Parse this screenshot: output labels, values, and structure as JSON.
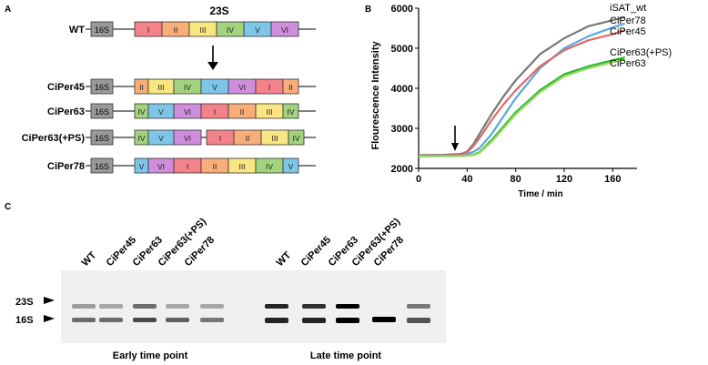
{
  "panel_letters": {
    "a": "A",
    "b": "B",
    "c": "C"
  },
  "panel_a": {
    "title": "23S",
    "label_16s": "16S",
    "colors": {
      "I": "#f4828a",
      "II": "#f9ae7a",
      "III": "#f9e680",
      "IV": "#a3d37e",
      "V": "#7ec6e8",
      "VI": "#cf8edb",
      "box_16s": "#999999"
    },
    "constructs": [
      {
        "name": "WT",
        "segments": [
          "I",
          "II",
          "III",
          "IV",
          "V",
          "VI"
        ]
      },
      {
        "name": "CiPer45",
        "segments": [
          "II",
          "III",
          "IV",
          "V",
          "VI",
          "I",
          "II"
        ]
      },
      {
        "name": "CiPer63",
        "segments": [
          "IV",
          "V",
          "VI",
          "I",
          "II",
          "III",
          "IV"
        ]
      },
      {
        "name": "CiPer63(+PS)",
        "segments": [
          "IV",
          "V",
          "VI",
          "I",
          "II",
          "III",
          "IV"
        ]
      },
      {
        "name": "CiPer78",
        "segments": [
          "V",
          "VI",
          "I",
          "II",
          "III",
          "IV",
          "V"
        ]
      }
    ]
  },
  "chart_data": {
    "type": "line",
    "title": "",
    "xlabel": "Time / min",
    "ylabel": "Flourescence Intensity",
    "xlim": [
      0,
      180
    ],
    "ylim": [
      2000,
      6000
    ],
    "xticks": [
      0,
      40,
      80,
      120,
      160
    ],
    "yticks": [
      2000,
      3000,
      4000,
      5000,
      6000
    ],
    "grid": false,
    "legend": "right, labels at line ends",
    "annotation": "arrow at ~30 min",
    "arrow_x": 30,
    "series": [
      {
        "name": "iSAT_wt",
        "color": "#777777",
        "x": [
          0,
          20,
          35,
          40,
          45,
          50,
          60,
          70,
          80,
          100,
          120,
          140,
          160,
          170
        ],
        "y": [
          2330,
          2340,
          2360,
          2420,
          2600,
          2850,
          3350,
          3800,
          4200,
          4850,
          5250,
          5550,
          5700,
          5780
        ]
      },
      {
        "name": "CiPer78",
        "color": "#5ba8dc",
        "x": [
          0,
          20,
          35,
          40,
          45,
          50,
          60,
          70,
          80,
          100,
          120,
          140,
          160,
          170
        ],
        "y": [
          2310,
          2320,
          2330,
          2360,
          2410,
          2500,
          2850,
          3300,
          3750,
          4500,
          5000,
          5300,
          5520,
          5620
        ]
      },
      {
        "name": "CiPer45",
        "color": "#dd6b67",
        "x": [
          0,
          20,
          35,
          40,
          45,
          50,
          60,
          70,
          80,
          100,
          120,
          140,
          160,
          170
        ],
        "y": [
          2310,
          2320,
          2340,
          2400,
          2550,
          2750,
          3200,
          3600,
          3950,
          4550,
          4950,
          5200,
          5350,
          5450
        ]
      },
      {
        "name": "CiPer63(+PS)",
        "color": "#2eb82e",
        "x": [
          0,
          20,
          35,
          40,
          45,
          50,
          60,
          70,
          80,
          100,
          120,
          140,
          160,
          170
        ],
        "y": [
          2300,
          2305,
          2310,
          2320,
          2340,
          2400,
          2700,
          3050,
          3400,
          3950,
          4350,
          4550,
          4700,
          4770
        ]
      },
      {
        "name": "CiPer63",
        "color": "#9bd86a",
        "x": [
          0,
          20,
          35,
          40,
          45,
          50,
          60,
          70,
          80,
          100,
          120,
          140,
          160,
          170
        ],
        "y": [
          2300,
          2305,
          2310,
          2320,
          2330,
          2380,
          2660,
          3000,
          3350,
          3900,
          4300,
          4500,
          4650,
          4720
        ]
      }
    ]
  },
  "panel_c": {
    "lane_labels": [
      "WT",
      "CiPer45",
      "CiPer63",
      "CiPer63(+PS)",
      "CiPer78",
      "WT",
      "CiPer45",
      "CiPer63",
      "CiPer63(+PS)",
      "CiPer78"
    ],
    "marker_23s": "23S",
    "marker_16s": "16S",
    "early_label": "Early time point",
    "late_label": "Late time point"
  }
}
